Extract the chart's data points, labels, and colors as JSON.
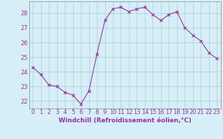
{
  "x": [
    0,
    1,
    2,
    3,
    4,
    5,
    6,
    7,
    8,
    9,
    10,
    11,
    12,
    13,
    14,
    15,
    16,
    17,
    18,
    19,
    20,
    21,
    22,
    23
  ],
  "y": [
    24.3,
    23.8,
    23.1,
    23.0,
    22.6,
    22.4,
    21.8,
    22.7,
    25.2,
    27.5,
    28.3,
    28.4,
    28.1,
    28.3,
    28.4,
    27.9,
    27.5,
    27.9,
    28.1,
    27.0,
    26.5,
    26.1,
    25.3,
    24.9
  ],
  "line_color": "#993399",
  "marker": "x",
  "marker_size": 3,
  "bg_color": "#d6eef8",
  "grid_color": "#aacccc",
  "axis_color": "#993399",
  "xlabel": "Windchill (Refroidissement éolien,°C)",
  "xlabel_fontsize": 6.5,
  "ylabel_ticks": [
    22,
    23,
    24,
    25,
    26,
    27,
    28
  ],
  "ylim": [
    21.5,
    28.8
  ],
  "xlim": [
    -0.5,
    23.5
  ],
  "tick_fontsize": 6,
  "title": ""
}
